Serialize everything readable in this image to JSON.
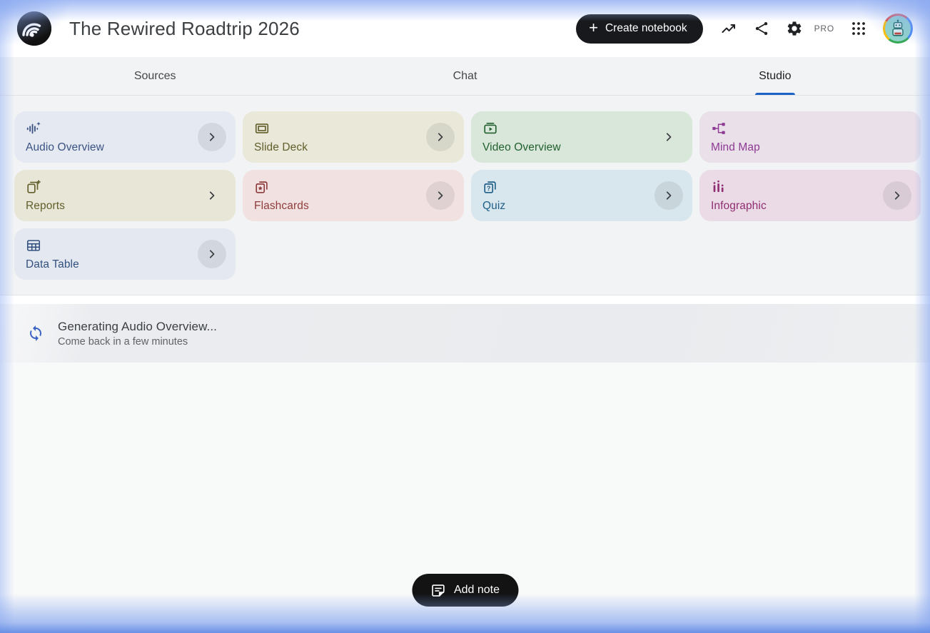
{
  "header": {
    "title": "The Rewired Roadtrip 2026",
    "create_notebook_label": "Create notebook",
    "pro_badge": "PRO"
  },
  "tabs": [
    {
      "label": "Sources",
      "active": false
    },
    {
      "label": "Chat",
      "active": false
    },
    {
      "label": "Studio",
      "active": true
    }
  ],
  "studio": {
    "cards": [
      {
        "label": "Audio Overview",
        "icon": "audio-waveform-sparkle",
        "bg": "#e5e9f2",
        "fg": "#3a5382",
        "chevron": "circle"
      },
      {
        "label": "Slide Deck",
        "icon": "slide-frame",
        "bg": "#e9e8d9",
        "fg": "#615e2b",
        "chevron": "circle"
      },
      {
        "label": "Video Overview",
        "icon": "video-library",
        "bg": "#d9e7da",
        "fg": "#22602f",
        "chevron": "plain"
      },
      {
        "label": "Mind Map",
        "icon": "node-graph",
        "bg": "#e9e0e9",
        "fg": "#8e3a94",
        "chevron": "none"
      },
      {
        "label": "Reports",
        "icon": "report-stack",
        "bg": "#e8e7d7",
        "fg": "#615e2b",
        "chevron": "plain"
      },
      {
        "label": "Flashcards",
        "icon": "flashcards-star",
        "bg": "#f2e1e1",
        "fg": "#8e3c3c",
        "chevron": "circle"
      },
      {
        "label": "Quiz",
        "icon": "quiz-cards",
        "bg": "#d8e6ed",
        "fg": "#1f5f86",
        "chevron": "circle"
      },
      {
        "label": "Infographic",
        "icon": "infographic-bars",
        "bg": "#ebdbe6",
        "fg": "#8f2e72",
        "chevron": "circle"
      },
      {
        "label": "Data Table",
        "icon": "table-grid",
        "bg": "#e4e8f1",
        "fg": "#32517e",
        "chevron": "circle"
      }
    ],
    "status": {
      "title": "Generating Audio Overview...",
      "subtitle": "Come back in a few minutes"
    },
    "add_note_label": "Add note"
  },
  "colors": {
    "accent_blue": "#1c62c5",
    "edge_glow_blue": "#88a7ee",
    "button_black": "#17191c",
    "panel_gray": "#f1f3f4",
    "sync_icon_blue": "#3b63c4"
  }
}
